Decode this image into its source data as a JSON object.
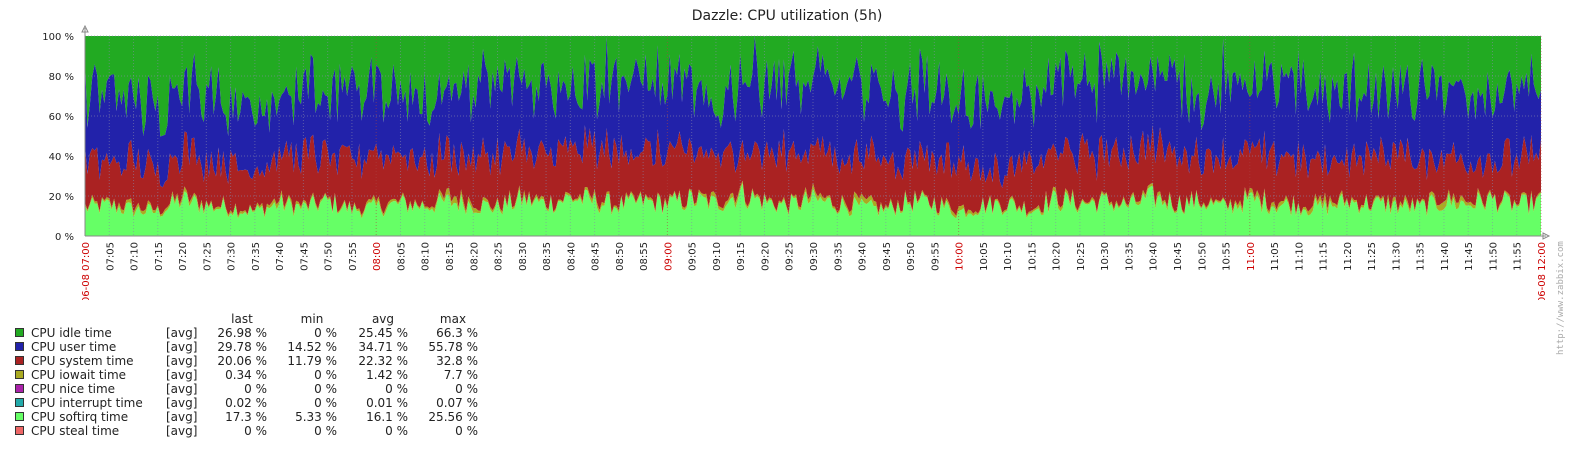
{
  "chart_data": {
    "type": "area",
    "title": "Dazzle: CPU utilization (5h)",
    "x_start": "06-08 07:00",
    "x_end": "06-08 12:00",
    "minor_interval_minutes": 5,
    "x_tick_labels": [
      "07:05",
      "07:10",
      "07:15",
      "07:20",
      "07:25",
      "07:30",
      "07:35",
      "07:40",
      "07:45",
      "07:50",
      "07:55",
      "08:00",
      "08:05",
      "08:10",
      "08:15",
      "08:20",
      "08:25",
      "08:30",
      "08:35",
      "08:40",
      "08:45",
      "08:50",
      "08:55",
      "09:00",
      "09:05",
      "09:10",
      "09:15",
      "09:20",
      "09:25",
      "09:30",
      "09:35",
      "09:40",
      "09:45",
      "09:50",
      "09:55",
      "10:00",
      "10:05",
      "10:10",
      "10:15",
      "10:20",
      "10:25",
      "10:30",
      "10:35",
      "10:40",
      "10:45",
      "10:50",
      "10:55",
      "11:00",
      "11:05",
      "11:10",
      "11:15",
      "11:20",
      "11:25",
      "11:30",
      "11:35",
      "11:40",
      "11:45",
      "11:50",
      "11:55"
    ],
    "x_highlight_labels": [
      "06-08 07:00",
      "08:00",
      "09:00",
      "10:00",
      "11:00",
      "06-08 12:00"
    ],
    "highlight_color": "#cc0000",
    "y_ticks": [
      0,
      20,
      40,
      60,
      80,
      100
    ],
    "y_tick_labels": [
      "0 %",
      "20 %",
      "40 %",
      "60 %",
      "80 %",
      "100 %"
    ],
    "ylim": [
      0,
      100
    ],
    "stacked": true,
    "x_minutes": [
      0,
      5,
      10,
      15,
      20,
      25,
      30,
      35,
      40,
      45,
      50,
      55,
      60,
      65,
      70,
      75,
      80,
      85,
      90,
      95,
      100,
      105,
      110,
      115,
      120,
      125,
      130,
      135,
      140,
      145,
      150,
      155,
      160,
      165,
      170,
      175,
      180,
      185,
      190,
      195,
      200,
      205,
      210,
      215,
      220,
      225,
      230,
      235,
      240,
      245,
      250,
      255,
      260,
      265,
      270,
      275,
      280,
      285,
      290,
      295,
      300
    ],
    "series": [
      {
        "name": "CPU softirq time",
        "color": "#66ff66",
        "values": [
          14,
          15,
          13,
          12,
          18,
          15,
          14,
          12,
          16,
          14,
          17,
          13,
          14,
          16,
          15,
          17,
          16,
          14,
          18,
          16,
          19,
          17,
          15,
          17,
          16,
          18,
          16,
          21,
          17,
          15,
          18,
          16,
          14,
          13,
          17,
          16,
          12,
          15,
          16,
          13,
          18,
          16,
          17,
          15,
          19,
          16,
          17,
          14,
          18,
          16,
          15,
          14,
          17,
          16,
          15,
          14,
          17,
          16,
          18,
          15,
          17
        ]
      },
      {
        "name": "CPU iowait time",
        "color": "#aaaa22",
        "values": [
          1,
          1,
          2,
          1,
          2,
          1,
          1,
          1,
          2,
          1,
          1,
          1,
          2,
          1,
          1,
          3,
          2,
          1,
          2,
          1,
          1,
          2,
          1,
          1,
          1,
          1,
          2,
          2,
          1,
          1,
          2,
          1,
          3,
          1,
          1,
          1,
          2,
          1,
          1,
          1,
          2,
          1,
          1,
          1,
          2,
          1,
          1,
          1,
          2,
          2,
          1,
          3,
          1,
          1,
          2,
          1,
          3,
          2,
          1,
          1,
          1
        ]
      },
      {
        "name": "CPU interrupt time",
        "color": "#22aaaa",
        "values": [
          0,
          0,
          0,
          0,
          0,
          0,
          0,
          0,
          0,
          0,
          0,
          0,
          0,
          0,
          0,
          0,
          0,
          0,
          0,
          0,
          0,
          0,
          0,
          0,
          0,
          0,
          0,
          0,
          0,
          0,
          0,
          0,
          0,
          0,
          0,
          0,
          0,
          0,
          0,
          0,
          0,
          0,
          0,
          0,
          0,
          0,
          0,
          0,
          0,
          0,
          0,
          0,
          0,
          0,
          0,
          0,
          0,
          0,
          0,
          0,
          0
        ]
      },
      {
        "name": "CPU system time",
        "color": "#aa2222",
        "values": [
          22,
          19,
          23,
          18,
          24,
          22,
          23,
          20,
          22,
          25,
          21,
          24,
          26,
          24,
          22,
          21,
          23,
          25,
          22,
          24,
          23,
          25,
          26,
          23,
          24,
          22,
          21,
          24,
          23,
          26,
          22,
          25,
          21,
          24,
          22,
          23,
          24,
          20,
          15,
          24,
          22,
          25,
          23,
          26,
          23,
          27,
          22,
          24,
          21,
          23,
          25,
          18,
          22,
          23,
          25,
          22,
          21,
          20,
          19,
          22,
          20
        ]
      },
      {
        "name": "CPU user time",
        "color": "#2222aa",
        "values": [
          35,
          34,
          30,
          32,
          30,
          36,
          26,
          33,
          28,
          35,
          30,
          34,
          36,
          31,
          30,
          32,
          34,
          36,
          33,
          35,
          31,
          34,
          38,
          36,
          33,
          31,
          20,
          40,
          38,
          35,
          33,
          37,
          34,
          36,
          33,
          38,
          28,
          36,
          30,
          32,
          37,
          34,
          38,
          40,
          37,
          36,
          30,
          38,
          32,
          36,
          34,
          33,
          35,
          32,
          30,
          34,
          36,
          31,
          33,
          35,
          30
        ]
      },
      {
        "name": "CPU nice time",
        "color": "#aa22aa",
        "values": [
          0,
          0,
          0,
          0,
          0,
          0,
          0,
          0,
          0,
          0,
          0,
          0,
          0,
          0,
          0,
          0,
          0,
          0,
          0,
          0,
          0,
          0,
          0,
          0,
          0,
          0,
          0,
          0,
          0,
          0,
          0,
          0,
          0,
          0,
          0,
          0,
          0,
          0,
          0,
          0,
          0,
          0,
          0,
          0,
          0,
          0,
          0,
          0,
          0,
          0,
          0,
          0,
          0,
          0,
          0,
          0,
          0,
          0,
          0,
          0,
          0
        ]
      },
      {
        "name": "CPU steal time",
        "color": "#ee6666",
        "values": [
          0,
          0,
          0,
          0,
          0,
          0,
          0,
          0,
          0,
          0,
          0,
          0,
          0,
          0,
          0,
          0,
          0,
          0,
          0,
          0,
          0,
          0,
          0,
          0,
          0,
          0,
          0,
          0,
          0,
          0,
          0,
          0,
          0,
          0,
          0,
          0,
          0,
          0,
          0,
          0,
          0,
          0,
          0,
          0,
          0,
          0,
          0,
          0,
          0,
          0,
          0,
          0,
          0,
          0,
          0,
          0,
          0,
          0,
          0,
          0,
          0
        ]
      }
    ],
    "idle_series": {
      "name": "CPU idle time",
      "color": "#22aa22",
      "fills_to": 100
    }
  },
  "legend": {
    "headers": {
      "last": "last",
      "min": "min",
      "avg": "avg",
      "max": "max"
    },
    "rows": [
      {
        "name": "CPU idle time",
        "color": "#22aa22",
        "fn": "[avg]",
        "last": "26.98 %",
        "min": "0 %",
        "avg": "25.45 %",
        "max": "66.3 %"
      },
      {
        "name": "CPU user time",
        "color": "#2222aa",
        "fn": "[avg]",
        "last": "29.78 %",
        "min": "14.52 %",
        "avg": "34.71 %",
        "max": "55.78 %"
      },
      {
        "name": "CPU system time",
        "color": "#aa2222",
        "fn": "[avg]",
        "last": "20.06 %",
        "min": "11.79 %",
        "avg": "22.32 %",
        "max": "32.8 %"
      },
      {
        "name": "CPU iowait time",
        "color": "#aaaa22",
        "fn": "[avg]",
        "last": "0.34 %",
        "min": "0 %",
        "avg": "1.42 %",
        "max": "7.7 %"
      },
      {
        "name": "CPU nice time",
        "color": "#aa22aa",
        "fn": "[avg]",
        "last": "0 %",
        "min": "0 %",
        "avg": "0 %",
        "max": "0 %"
      },
      {
        "name": "CPU interrupt time",
        "color": "#22aaaa",
        "fn": "[avg]",
        "last": "0.02 %",
        "min": "0 %",
        "avg": "0.01 %",
        "max": "0.07 %"
      },
      {
        "name": "CPU softirq time",
        "color": "#66ff66",
        "fn": "[avg]",
        "last": "17.3 %",
        "min": "5.33 %",
        "avg": "16.1 %",
        "max": "25.56 %"
      },
      {
        "name": "CPU steal time",
        "color": "#ee6666",
        "fn": "[avg]",
        "last": "0 %",
        "min": "0 %",
        "avg": "0 %",
        "max": "0 %"
      }
    ]
  },
  "watermark": "http://www.zabbix.com"
}
